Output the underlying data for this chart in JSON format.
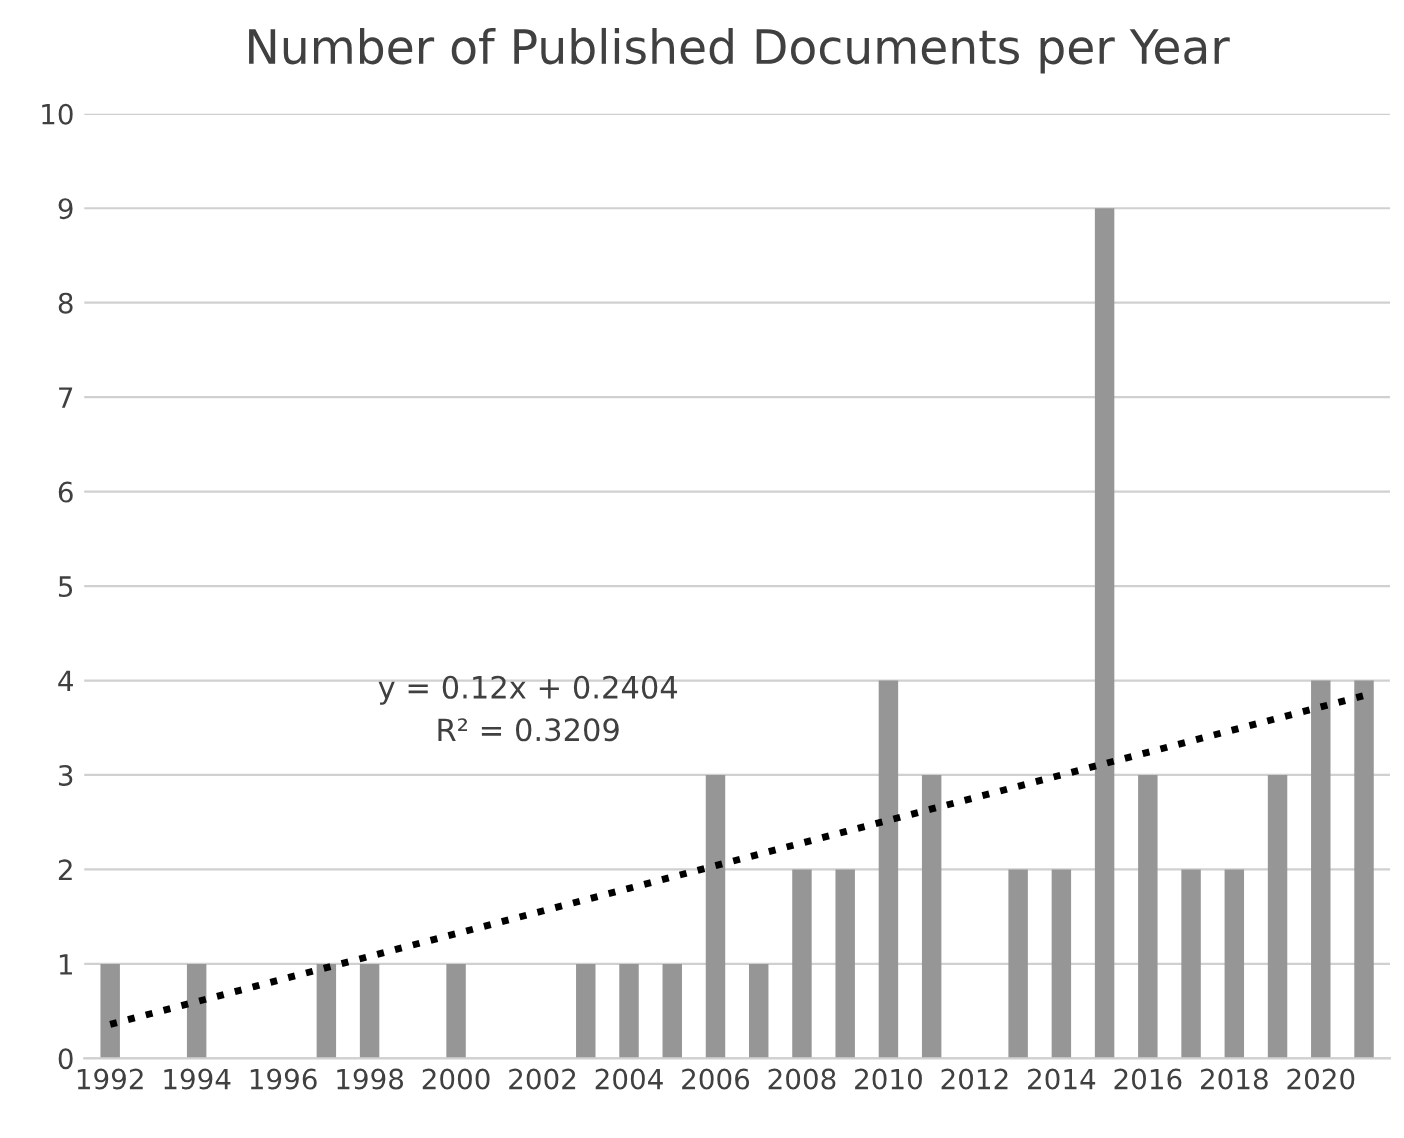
{
  "chart_data": {
    "type": "bar",
    "title": "Number of Published Documents per Year",
    "categories": [
      "1992",
      null,
      "1994",
      null,
      "1996",
      null,
      "1998",
      null,
      "2000",
      null,
      "2002",
      null,
      "2004",
      null,
      "2006",
      null,
      "2008",
      null,
      "2010",
      null,
      "2012",
      null,
      "2014",
      null,
      "2016",
      null,
      "2018",
      null,
      "2020",
      null
    ],
    "series": [
      {
        "color": "#969696",
        "values": [
          1,
          0,
          1,
          0,
          0,
          1,
          1,
          0,
          1,
          0,
          0,
          1,
          1,
          1,
          3,
          1,
          2,
          2,
          4,
          3,
          0,
          2,
          2,
          9,
          3,
          2,
          2,
          3,
          4,
          4
        ]
      },
      {
        "type": "line",
        "color": "#000000",
        "line_style": "dotted",
        "values": [
          0.36,
          0.48,
          0.6,
          0.72,
          0.84,
          0.96,
          1.08,
          1.2,
          1.32,
          1.44,
          1.56,
          1.68,
          1.8,
          1.92,
          2.04,
          2.16,
          2.28,
          2.4,
          2.52,
          2.64,
          2.76,
          2.88,
          3.0,
          3.12,
          3.24,
          3.36,
          3.48,
          3.6,
          3.72,
          3.84
        ]
      }
    ],
    "annotations": [
      "y = 0.12x + 0.2404",
      "R² = 0.3209"
    ],
    "ylim": [
      0,
      10
    ],
    "yticks": [
      0,
      1,
      2,
      3,
      4,
      5,
      6,
      7,
      8,
      9,
      10
    ],
    "grid": "y",
    "legend": false
  }
}
